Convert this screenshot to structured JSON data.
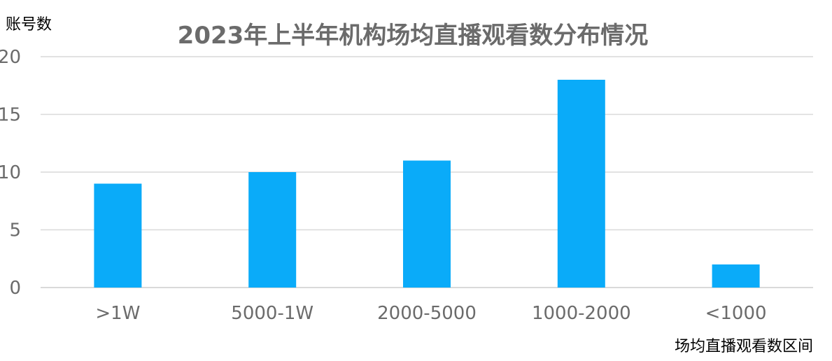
{
  "chart_data": {
    "type": "bar",
    "title": "2023年上半年机构场均直播观看数分布情况",
    "ylabel": "账号数",
    "xlabel": "场均直播观看数区间",
    "categories": [
      ">1W",
      "5000-1W",
      "2000-5000",
      "1000-2000",
      "<1000"
    ],
    "values": [
      9,
      10,
      11,
      18,
      2
    ],
    "ylim": [
      0,
      20
    ],
    "yticks": [
      "0",
      "5",
      "10",
      "15",
      "20"
    ],
    "grid": true,
    "legend": "none",
    "bar_color": "#0aabf9"
  }
}
